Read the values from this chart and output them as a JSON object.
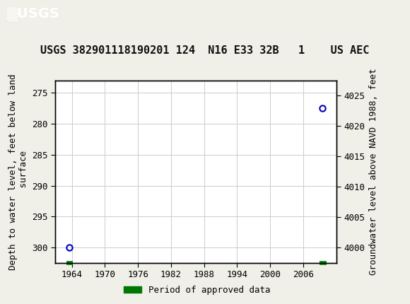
{
  "title": "USGS 382901118190201 124  N16 E33 32B   1    US AEC",
  "ylabel_left": "Depth to water level, feet below land\n surface",
  "ylabel_right": "Groundwater level above NAVD 1988, feet",
  "header_color": "#006633",
  "bg_color": "#f0f0e8",
  "plot_bg_color": "#ffffff",
  "grid_color": "#cccccc",
  "data_points": [
    {
      "x": 1963.5,
      "y_depth": 300.0
    },
    {
      "x": 2009.5,
      "y_depth": 277.5
    }
  ],
  "period_bars": [
    {
      "x_start": 1963.0,
      "x_end": 1964.2
    },
    {
      "x_start": 2009.0,
      "x_end": 2010.2
    }
  ],
  "xlim": [
    1961.0,
    2012.0
  ],
  "xticks": [
    1964,
    1970,
    1976,
    1982,
    1988,
    1994,
    2000,
    2006
  ],
  "ylim_left_bottom": 302.5,
  "ylim_left_top": 273.0,
  "ylim_right_bottom": 3997.5,
  "ylim_right_top": 4027.5,
  "yticks_left": [
    275,
    280,
    285,
    290,
    295,
    300
  ],
  "yticks_right": [
    4000,
    4005,
    4010,
    4015,
    4020,
    4025
  ],
  "point_color": "#0000bb",
  "period_bar_color": "#007700",
  "legend_label": "Period of approved data",
  "title_fontsize": 11,
  "tick_fontsize": 9,
  "label_fontsize": 9
}
